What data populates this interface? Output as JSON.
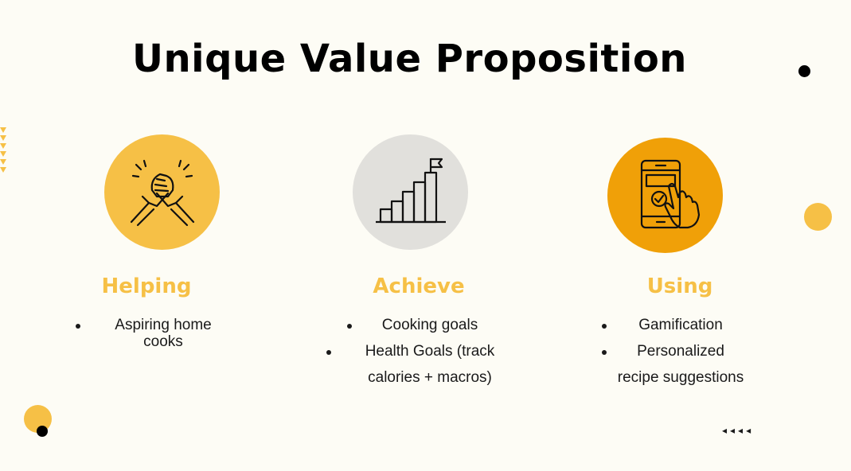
{
  "title": "Unique Value Proposition",
  "colors": {
    "accent_yellow": "#f6c046",
    "gray_circle": "#e1e0dc",
    "orange_circle": "#f0a008",
    "background": "#fdfcf5"
  },
  "columns": [
    {
      "icon": "handshake-icon",
      "heading": "Helping",
      "bullets": [
        "Aspiring home",
        "cooks"
      ]
    },
    {
      "icon": "growth-chart-flag-icon",
      "heading": "Achieve",
      "bullets": [
        "Cooking goals",
        "Health Goals (track",
        "calories + macros)"
      ]
    },
    {
      "icon": "phone-tap-icon",
      "heading": "Using",
      "bullets": [
        "Gamification",
        "Personalized",
        "recipe suggestions"
      ]
    }
  ],
  "decor_arrows": "◂◂◂◂"
}
